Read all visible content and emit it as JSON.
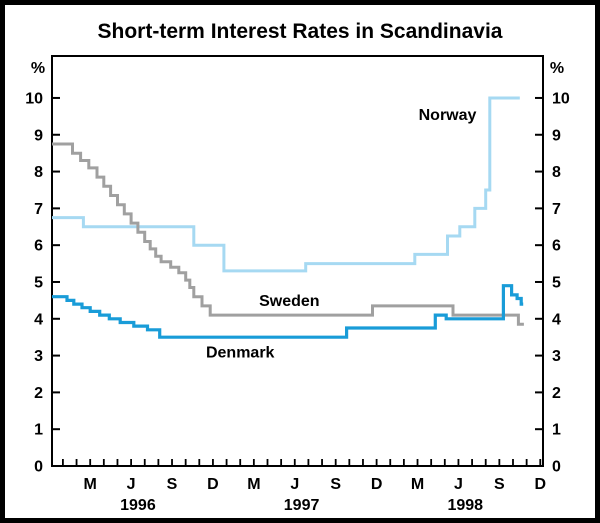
{
  "title": "Short-term Interest Rates in Scandinavia",
  "chart_data": {
    "type": "line",
    "title": "Short-term Interest Rates in Scandinavia",
    "y_unit_left": "%",
    "y_unit_right": "%",
    "ylim": [
      0,
      11.14
    ],
    "yticks": [
      0,
      1,
      2,
      3,
      4,
      5,
      6,
      7,
      8,
      9,
      10
    ],
    "x_domain_months_since_jan1996": [
      -0.8,
      35.2
    ],
    "x_tick_every_month": true,
    "grid": false,
    "legend_position": "inline-annotations",
    "month_labels": [
      {
        "m": 2,
        "label": "M"
      },
      {
        "m": 5,
        "label": "J"
      },
      {
        "m": 8,
        "label": "S"
      },
      {
        "m": 11,
        "label": "D"
      },
      {
        "m": 14,
        "label": "M"
      },
      {
        "m": 17,
        "label": "J"
      },
      {
        "m": 20,
        "label": "S"
      },
      {
        "m": 23,
        "label": "D"
      },
      {
        "m": 26,
        "label": "M"
      },
      {
        "m": 29,
        "label": "J"
      },
      {
        "m": 32,
        "label": "S"
      },
      {
        "m": 35,
        "label": "D"
      }
    ],
    "year_labels": [
      {
        "m": 5.5,
        "label": "1996"
      },
      {
        "m": 17.5,
        "label": "1997"
      },
      {
        "m": 29.5,
        "label": "1998"
      }
    ],
    "series": [
      {
        "name": "Norway",
        "color": "#a6d9f2",
        "width": 3,
        "steps_month_value": [
          [
            -0.8,
            6.75
          ],
          [
            1.5,
            6.5
          ],
          [
            9.6,
            6.0
          ],
          [
            11.8,
            5.3
          ],
          [
            17.8,
            5.5
          ],
          [
            25.8,
            5.75
          ],
          [
            28.2,
            6.25
          ],
          [
            29.1,
            6.5
          ],
          [
            30.2,
            7.0
          ],
          [
            31.0,
            7.5
          ],
          [
            31.3,
            10.0
          ]
        ],
        "end_month": 33.5
      },
      {
        "name": "Sweden",
        "color": "#a0a0a0",
        "width": 3,
        "steps_month_value": [
          [
            -0.8,
            8.75
          ],
          [
            0.7,
            8.5
          ],
          [
            1.3,
            8.3
          ],
          [
            1.9,
            8.1
          ],
          [
            2.5,
            7.85
          ],
          [
            3.0,
            7.6
          ],
          [
            3.5,
            7.35
          ],
          [
            4.0,
            7.1
          ],
          [
            4.5,
            6.85
          ],
          [
            5.0,
            6.6
          ],
          [
            5.5,
            6.35
          ],
          [
            6.0,
            6.1
          ],
          [
            6.4,
            5.9
          ],
          [
            6.8,
            5.7
          ],
          [
            7.2,
            5.55
          ],
          [
            7.9,
            5.4
          ],
          [
            8.5,
            5.25
          ],
          [
            9.0,
            5.05
          ],
          [
            9.3,
            4.85
          ],
          [
            9.6,
            4.6
          ],
          [
            10.2,
            4.35
          ],
          [
            10.8,
            4.1
          ],
          [
            22.7,
            4.35
          ],
          [
            28.6,
            4.1
          ],
          [
            33.4,
            3.85
          ]
        ],
        "end_month": 33.8
      },
      {
        "name": "Denmark",
        "color": "#199cd8",
        "width": 3.2,
        "steps_month_value": [
          [
            -0.8,
            4.6
          ],
          [
            0.3,
            4.5
          ],
          [
            0.8,
            4.4
          ],
          [
            1.4,
            4.3
          ],
          [
            2.0,
            4.2
          ],
          [
            2.7,
            4.1
          ],
          [
            3.4,
            4.0
          ],
          [
            4.2,
            3.9
          ],
          [
            5.2,
            3.8
          ],
          [
            6.2,
            3.7
          ],
          [
            7.1,
            3.5
          ],
          [
            20.8,
            3.75
          ],
          [
            27.3,
            4.1
          ],
          [
            28.1,
            4.0
          ],
          [
            32.3,
            4.9
          ],
          [
            32.9,
            4.65
          ],
          [
            33.3,
            4.55
          ],
          [
            33.6,
            4.4
          ]
        ],
        "end_month": 33.75
      }
    ],
    "annotations": [
      {
        "text": "Norway",
        "m": 28.2,
        "v": 9.55
      },
      {
        "text": "Sweden",
        "m": 16.6,
        "v": 4.5
      },
      {
        "text": "Denmark",
        "m": 13.0,
        "v": 3.1
      }
    ]
  }
}
